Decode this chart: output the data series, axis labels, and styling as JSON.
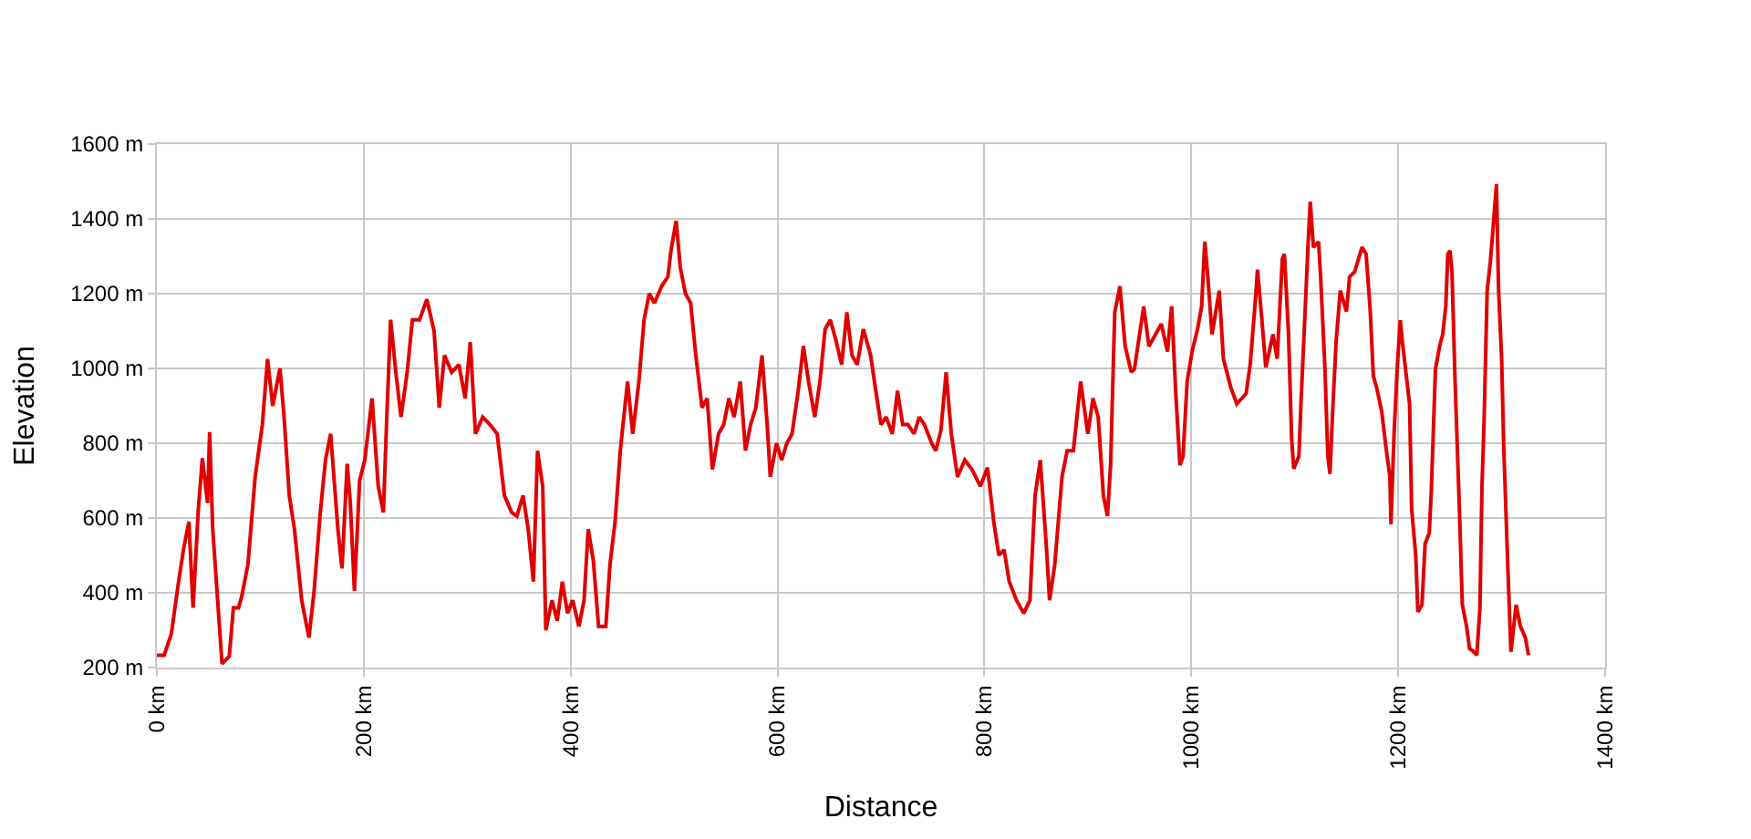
{
  "chart_data": {
    "type": "line",
    "xlabel": "Distance",
    "ylabel": "Elevation",
    "x": [
      0,
      7,
      14,
      21,
      26,
      31,
      35,
      40,
      44,
      49,
      51,
      54,
      60,
      63,
      70,
      74,
      79,
      82,
      88,
      95,
      102,
      107,
      112,
      119,
      123,
      128,
      133,
      140,
      147,
      152,
      158,
      163,
      168,
      175,
      179,
      184,
      187,
      191,
      196,
      201,
      208,
      214,
      219,
      222,
      226,
      231,
      236,
      242,
      247,
      254,
      261,
      268,
      273,
      278,
      285,
      292,
      298,
      303,
      308,
      315,
      322,
      329,
      336,
      343,
      348,
      354,
      359,
      364,
      368,
      373,
      376,
      382,
      387,
      392,
      397,
      402,
      408,
      413,
      417,
      422,
      427,
      434,
      438,
      443,
      448,
      455,
      460,
      466,
      471,
      476,
      481,
      488,
      494,
      497,
      502,
      506,
      511,
      516,
      521,
      527,
      532,
      537,
      543,
      548,
      553,
      558,
      564,
      569,
      574,
      579,
      585,
      590,
      593,
      599,
      604,
      609,
      614,
      620,
      625,
      630,
      636,
      641,
      646,
      651,
      656,
      662,
      667,
      672,
      677,
      683,
      690,
      695,
      700,
      705,
      711,
      716,
      721,
      726,
      732,
      737,
      742,
      749,
      753,
      758,
      763,
      768,
      774,
      781,
      788,
      796,
      803,
      809,
      814,
      819,
      824,
      831,
      838,
      844,
      849,
      854,
      860,
      863,
      868,
      875,
      880,
      886,
      893,
      900,
      905,
      910,
      915,
      919,
      922,
      926,
      931,
      936,
      942,
      945,
      954,
      959,
      971,
      977,
      981,
      985,
      989,
      992,
      996,
      1001,
      1006,
      1010,
      1013,
      1016,
      1020,
      1027,
      1031,
      1038,
      1044,
      1053,
      1057,
      1062,
      1064,
      1068,
      1072,
      1079,
      1083,
      1088,
      1090,
      1094,
      1097,
      1099,
      1104,
      1106,
      1110,
      1113,
      1115,
      1118,
      1123,
      1125,
      1129,
      1132,
      1134,
      1137,
      1140,
      1144,
      1150,
      1153,
      1158,
      1165,
      1169,
      1173,
      1176,
      1179,
      1184,
      1188,
      1192,
      1193,
      1196,
      1199,
      1202,
      1204,
      1211,
      1213,
      1217,
      1219,
      1223,
      1226,
      1230,
      1232,
      1236,
      1240,
      1243,
      1246,
      1248,
      1250,
      1252,
      1255,
      1259,
      1262,
      1266,
      1269,
      1273,
      1276,
      1279,
      1281,
      1283,
      1286,
      1289,
      1292,
      1295,
      1297,
      1300,
      1302,
      1306,
      1309,
      1314,
      1318,
      1323,
      1326
    ],
    "series": [
      {
        "color": "#e00000",
        "values": [
          233,
          233,
          290,
          430,
          520,
          590,
          360,
          620,
          760,
          640,
          830,
          570,
          330,
          210,
          230,
          360,
          360,
          390,
          475,
          710,
          850,
          1025,
          900,
          1000,
          870,
          660,
          570,
          380,
          280,
          405,
          615,
          755,
          825,
          570,
          465,
          745,
          640,
          405,
          700,
          755,
          920,
          685,
          615,
          850,
          1130,
          990,
          870,
          990,
          1130,
          1130,
          1185,
          1100,
          895,
          1035,
          990,
          1010,
          920,
          1070,
          825,
          870,
          850,
          825,
          660,
          615,
          605,
          660,
          570,
          430,
          780,
          685,
          300,
          380,
          325,
          430,
          345,
          380,
          310,
          380,
          570,
          485,
          310,
          310,
          475,
          590,
          780,
          965,
          825,
          965,
          1130,
          1200,
          1175,
          1220,
          1245,
          1315,
          1395,
          1270,
          1200,
          1175,
          1035,
          895,
          920,
          730,
          825,
          850,
          920,
          870,
          965,
          780,
          850,
          895,
          1035,
          850,
          710,
          800,
          755,
          800,
          825,
          940,
          1060,
          965,
          870,
          965,
          1105,
          1130,
          1080,
          1010,
          1150,
          1035,
          1010,
          1105,
          1035,
          940,
          850,
          870,
          825,
          940,
          850,
          850,
          825,
          870,
          850,
          800,
          780,
          835,
          990,
          825,
          710,
          755,
          730,
          685,
          735,
          590,
          500,
          515,
          430,
          380,
          345,
          380,
          660,
          755,
          520,
          380,
          475,
          710,
          780,
          780,
          965,
          825,
          920,
          870,
          660,
          605,
          745,
          1150,
          1220,
          1060,
          990,
          998,
          1166,
          1059,
          1119,
          1045,
          1166,
          933,
          741,
          765,
          965,
          1049,
          1105,
          1166,
          1339,
          1245,
          1091,
          1208,
          1026,
          951,
          905,
          933,
          1012,
          1185,
          1264,
          1138,
          1003,
          1091,
          1026,
          1292,
          1306,
          1091,
          811,
          732,
          765,
          905,
          1152,
          1339,
          1446,
          1324,
          1339,
          1245,
          1012,
          765,
          718,
          905,
          1073,
          1208,
          1152,
          1245,
          1259,
          1324,
          1306,
          1152,
          979,
          951,
          886,
          793,
          709,
          583,
          825,
          998,
          1129,
          1073,
          905,
          625,
          499,
          349,
          368,
          531,
          559,
          671,
          998,
          1059,
          1091,
          1166,
          1306,
          1315,
          1259,
          965,
          639,
          368,
          312,
          251,
          242,
          233,
          359,
          685,
          858,
          1208,
          1283,
          1385,
          1493,
          1213,
          1026,
          793,
          466,
          242,
          368,
          312,
          279,
          233
        ]
      }
    ],
    "xlim": [
      0,
      1400
    ],
    "ylim": [
      200,
      1600
    ],
    "xticks": [
      {
        "value": 0,
        "label": "0 km"
      },
      {
        "value": 200,
        "label": "200 km"
      },
      {
        "value": 400,
        "label": "400 km"
      },
      {
        "value": 600,
        "label": "600 km"
      },
      {
        "value": 800,
        "label": "800 km"
      },
      {
        "value": 1000,
        "label": "1000 km"
      },
      {
        "value": 1200,
        "label": "1200 km"
      },
      {
        "value": 1400,
        "label": "1400 km"
      }
    ],
    "yticks": [
      {
        "value": 200,
        "label": "200 m"
      },
      {
        "value": 400,
        "label": "400 m"
      },
      {
        "value": 600,
        "label": "600 m"
      },
      {
        "value": 800,
        "label": "800 m"
      },
      {
        "value": 1000,
        "label": "1000 m"
      },
      {
        "value": 1200,
        "label": "1200 m"
      },
      {
        "value": 1400,
        "label": "1400 m"
      },
      {
        "value": 1600,
        "label": "1600 m"
      }
    ],
    "grid": true,
    "marker": "none",
    "line_style": "solid"
  }
}
